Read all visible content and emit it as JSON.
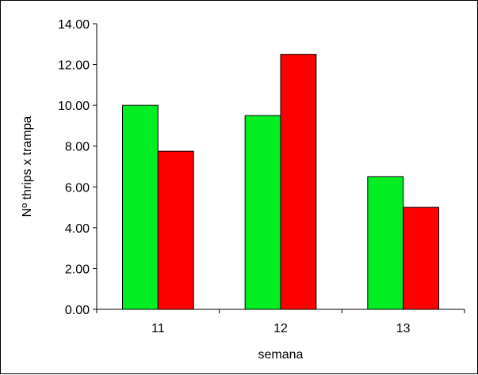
{
  "chart_data": {
    "type": "bar",
    "title": "",
    "xlabel": "semana",
    "ylabel": "Nº thrips x trampa",
    "categories": [
      "11",
      "12",
      "13"
    ],
    "series": [
      {
        "color": "#00ee22",
        "values": [
          10.0,
          9.5,
          6.5
        ]
      },
      {
        "color": "#ff0000",
        "values": [
          7.75,
          12.5,
          5.0
        ]
      }
    ],
    "ylim": [
      0,
      14
    ],
    "ytick_step": 2,
    "ytick_labels": [
      "0.00",
      "2.00",
      "4.00",
      "6.00",
      "8.00",
      "10.00",
      "12.00",
      "14.00"
    ],
    "grid": false,
    "legend": "none"
  }
}
